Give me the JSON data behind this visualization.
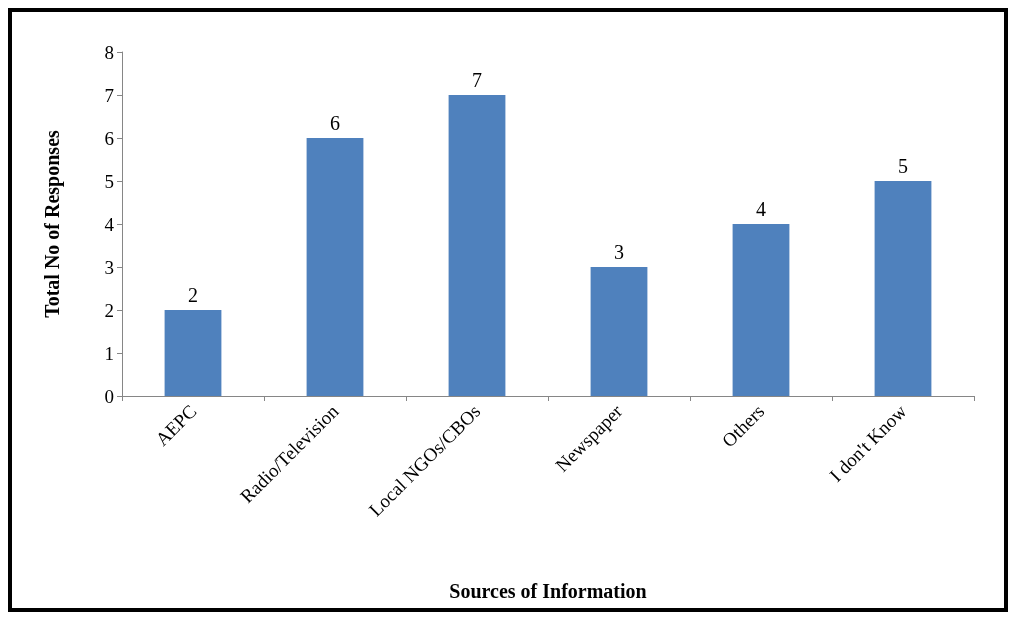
{
  "chart_data": {
    "type": "bar",
    "xlabel": "Sources of Information",
    "ylabel": "Total No of Responses",
    "categories": [
      "AEPC",
      "Radio/Television",
      "Local NGOs/CBOs",
      "Newspaper",
      "Others",
      "I don't Know"
    ],
    "values": [
      2,
      6,
      7,
      3,
      4,
      5
    ],
    "color": "#4f81bd",
    "ylim": [
      0,
      8
    ],
    "yticks": [
      0,
      1,
      2,
      3,
      4,
      5,
      6,
      7,
      8
    ],
    "grid": false,
    "data_labels": true
  }
}
